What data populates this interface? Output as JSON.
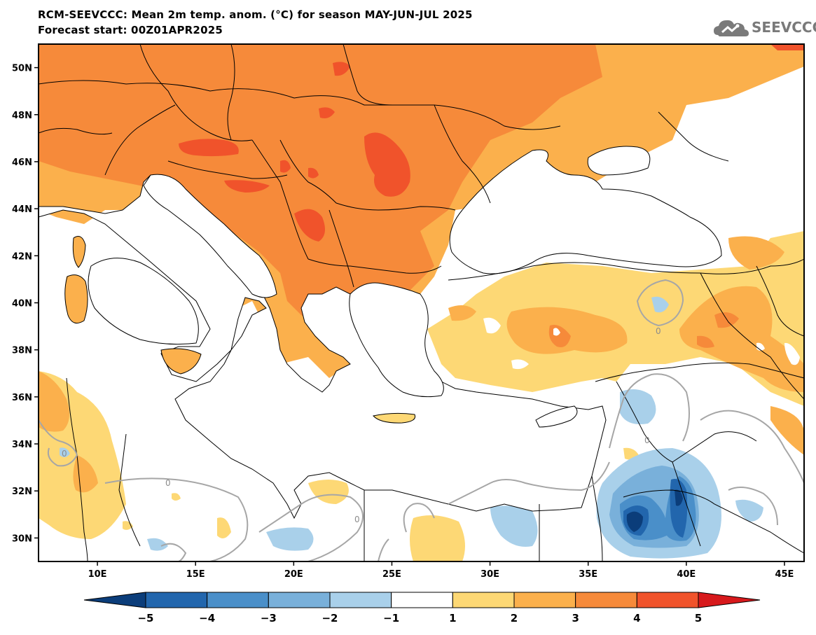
{
  "header": {
    "title": "RCM-SEEVCCC: Mean 2m temp. anom. (°C) for season MAY-JUN-JUL 2025",
    "subtitle": "Forecast start: 00Z01APR2025",
    "logo_text": "SEEVCCC"
  },
  "map": {
    "type": "heatmap",
    "lon_range": [
      7,
      46
    ],
    "lat_range": [
      29,
      51
    ],
    "y_ticks": [
      {
        "value": 50,
        "label": "50N"
      },
      {
        "value": 48,
        "label": "48N"
      },
      {
        "value": 46,
        "label": "46N"
      },
      {
        "value": 44,
        "label": "44N"
      },
      {
        "value": 42,
        "label": "42N"
      },
      {
        "value": 40,
        "label": "40N"
      },
      {
        "value": 38,
        "label": "38N"
      },
      {
        "value": 36,
        "label": "36N"
      },
      {
        "value": 34,
        "label": "34N"
      },
      {
        "value": 32,
        "label": "32N"
      },
      {
        "value": 30,
        "label": "30N"
      }
    ],
    "x_ticks": [
      {
        "value": 10,
        "label": "10E"
      },
      {
        "value": 15,
        "label": "15E"
      },
      {
        "value": 20,
        "label": "20E"
      },
      {
        "value": 25,
        "label": "25E"
      },
      {
        "value": 30,
        "label": "30E"
      },
      {
        "value": 35,
        "label": "35E"
      },
      {
        "value": 40,
        "label": "40E"
      },
      {
        "value": 45,
        "label": "45E"
      }
    ],
    "contour_label": "0"
  },
  "colorbar": {
    "labels": [
      "-5",
      "-4",
      "-3",
      "-2",
      "-1",
      "1",
      "2",
      "3",
      "4",
      "5"
    ],
    "colors": [
      "#0b3d7a",
      "#2266ad",
      "#4a8fc9",
      "#79b0da",
      "#a9d0ea",
      "#ffffff",
      "#fdd875",
      "#fbb04c",
      "#f68a3a",
      "#f0532b",
      "#d7191c"
    ]
  }
}
